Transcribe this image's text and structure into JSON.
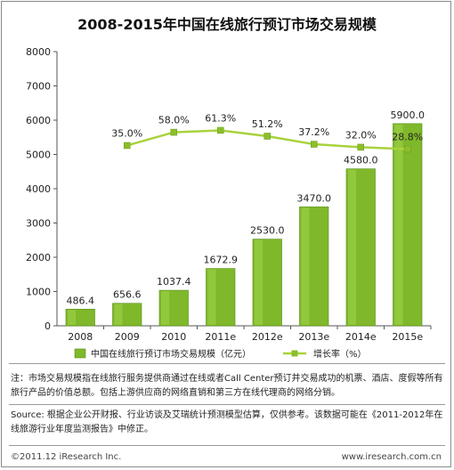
{
  "title": "2008-2015年中国在线旅行预订市场交易规模",
  "chart_data": {
    "type": "bar",
    "categories": [
      "2008",
      "2009",
      "2010",
      "2011e",
      "2012e",
      "2013e",
      "2014e",
      "2015e"
    ],
    "series": [
      {
        "name": "中国在线旅行预订市场交易规模（亿元）",
        "values": [
          486.4,
          656.6,
          1037.4,
          1672.9,
          2530.0,
          3470.0,
          4580.0,
          5900.0
        ],
        "labels": [
          "486.4",
          "656.6",
          "1037.4",
          "1672.9",
          "2530.0",
          "3470.0",
          "4580.0",
          "5900.0"
        ],
        "color": "#7fb82a"
      },
      {
        "name": "增长率（%）",
        "type": "line",
        "values": [
          null,
          35.0,
          58.0,
          61.3,
          51.2,
          37.2,
          32.0,
          28.8
        ],
        "labels": [
          "",
          "35.0%",
          "58.0%",
          "61.3%",
          "51.2%",
          "37.2%",
          "32.0%",
          "28.8%"
        ],
        "color": "#a8d23c"
      }
    ],
    "ylim": [
      0,
      8000
    ],
    "yticks": [
      0,
      1000,
      2000,
      3000,
      4000,
      5000,
      6000,
      7000,
      8000
    ],
    "legend_position": "bottom"
  },
  "notes": {
    "note1": "注：市场交易规模指在线旅行服务提供商通过在线或者Call Center预订并交易成功的机票、酒店、度假等所有旅行产品的价值总额。包括上游供应商的网络直销和第三方在线代理商的网络分销。",
    "note2": "Source: 根据企业公开财报、行业访谈及艾瑞统计预测模型估算，仅供参考。该数据可能在《2011-2012年在线旅游行业年度监测报告》中修正。"
  },
  "footer": {
    "copyright": "©2011.12 iResearch Inc.",
    "website": "www.iresearch.com.cn"
  }
}
